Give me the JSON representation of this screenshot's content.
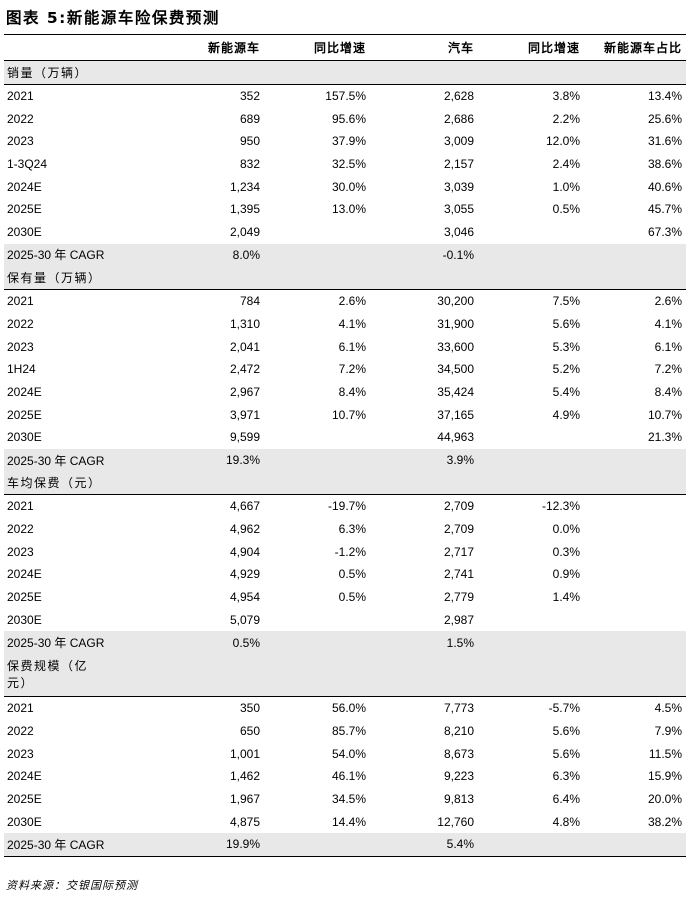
{
  "title": "图表 5:新能源车险保费预测",
  "columns": [
    "",
    "新能源车",
    "同比增速",
    "汽车",
    "同比增速",
    "新能源车占比"
  ],
  "sections": [
    {
      "label": "销量（万辆）",
      "rows": [
        [
          "2021",
          "352",
          "157.5%",
          "2,628",
          "3.8%",
          "13.4%"
        ],
        [
          "2022",
          "689",
          "95.6%",
          "2,686",
          "2.2%",
          "25.6%"
        ],
        [
          "2023",
          "950",
          "37.9%",
          "3,009",
          "12.0%",
          "31.6%"
        ],
        [
          "1-3Q24",
          "832",
          "32.5%",
          "2,157",
          "2.4%",
          "38.6%"
        ],
        [
          "2024E",
          "1,234",
          "30.0%",
          "3,039",
          "1.0%",
          "40.6%"
        ],
        [
          "2025E",
          "1,395",
          "13.0%",
          "3,055",
          "0.5%",
          "45.7%"
        ],
        [
          "2030E",
          "2,049",
          "",
          "3,046",
          "",
          "67.3%"
        ]
      ],
      "cagr": [
        "2025-30 年 CAGR",
        "8.0%",
        "",
        "-0.1%",
        "",
        ""
      ]
    },
    {
      "label": "保有量（万辆）",
      "rows": [
        [
          "2021",
          "784",
          "2.6%",
          "30,200",
          "7.5%",
          "2.6%"
        ],
        [
          "2022",
          "1,310",
          "4.1%",
          "31,900",
          "5.6%",
          "4.1%"
        ],
        [
          "2023",
          "2,041",
          "6.1%",
          "33,600",
          "5.3%",
          "6.1%"
        ],
        [
          "1H24",
          "2,472",
          "7.2%",
          "34,500",
          "5.2%",
          "7.2%"
        ],
        [
          "2024E",
          "2,967",
          "8.4%",
          "35,424",
          "5.4%",
          "8.4%"
        ],
        [
          "2025E",
          "3,971",
          "10.7%",
          "37,165",
          "4.9%",
          "10.7%"
        ],
        [
          "2030E",
          "9,599",
          "",
          "44,963",
          "",
          "21.3%"
        ]
      ],
      "cagr": [
        "2025-30 年 CAGR",
        "19.3%",
        "",
        "3.9%",
        "",
        ""
      ]
    },
    {
      "label": "车均保费（元）",
      "rows": [
        [
          "2021",
          "4,667",
          "-19.7%",
          "2,709",
          "-12.3%",
          ""
        ],
        [
          "2022",
          "4,962",
          "6.3%",
          "2,709",
          "0.0%",
          ""
        ],
        [
          "2023",
          "4,904",
          "-1.2%",
          "2,717",
          "0.3%",
          ""
        ],
        [
          "2024E",
          "4,929",
          "0.5%",
          "2,741",
          "0.9%",
          ""
        ],
        [
          "2025E",
          "4,954",
          "0.5%",
          "2,779",
          "1.4%",
          ""
        ],
        [
          "2030E",
          "5,079",
          "",
          "2,987",
          "",
          ""
        ]
      ],
      "cagr": [
        "2025-30 年 CAGR",
        "0.5%",
        "",
        "1.5%",
        "",
        ""
      ]
    },
    {
      "label_line1": "保费规模（亿",
      "label_line2": "元）",
      "rows": [
        [
          "2021",
          "350",
          "56.0%",
          "7,773",
          "-5.7%",
          "4.5%"
        ],
        [
          "2022",
          "650",
          "85.7%",
          "8,210",
          "5.6%",
          "7.9%"
        ],
        [
          "2023",
          "1,001",
          "54.0%",
          "8,673",
          "5.6%",
          "11.5%"
        ],
        [
          "2024E",
          "1,462",
          "46.1%",
          "9,223",
          "6.3%",
          "15.9%"
        ],
        [
          "2025E",
          "1,967",
          "34.5%",
          "9,813",
          "6.4%",
          "20.0%"
        ],
        [
          "2030E",
          "4,875",
          "14.4%",
          "12,760",
          "4.8%",
          "38.2%"
        ]
      ],
      "cagr": [
        "2025-30 年 CAGR",
        "19.9%",
        "",
        "5.4%",
        "",
        ""
      ]
    }
  ],
  "source": "资料来源：交银国际预测"
}
